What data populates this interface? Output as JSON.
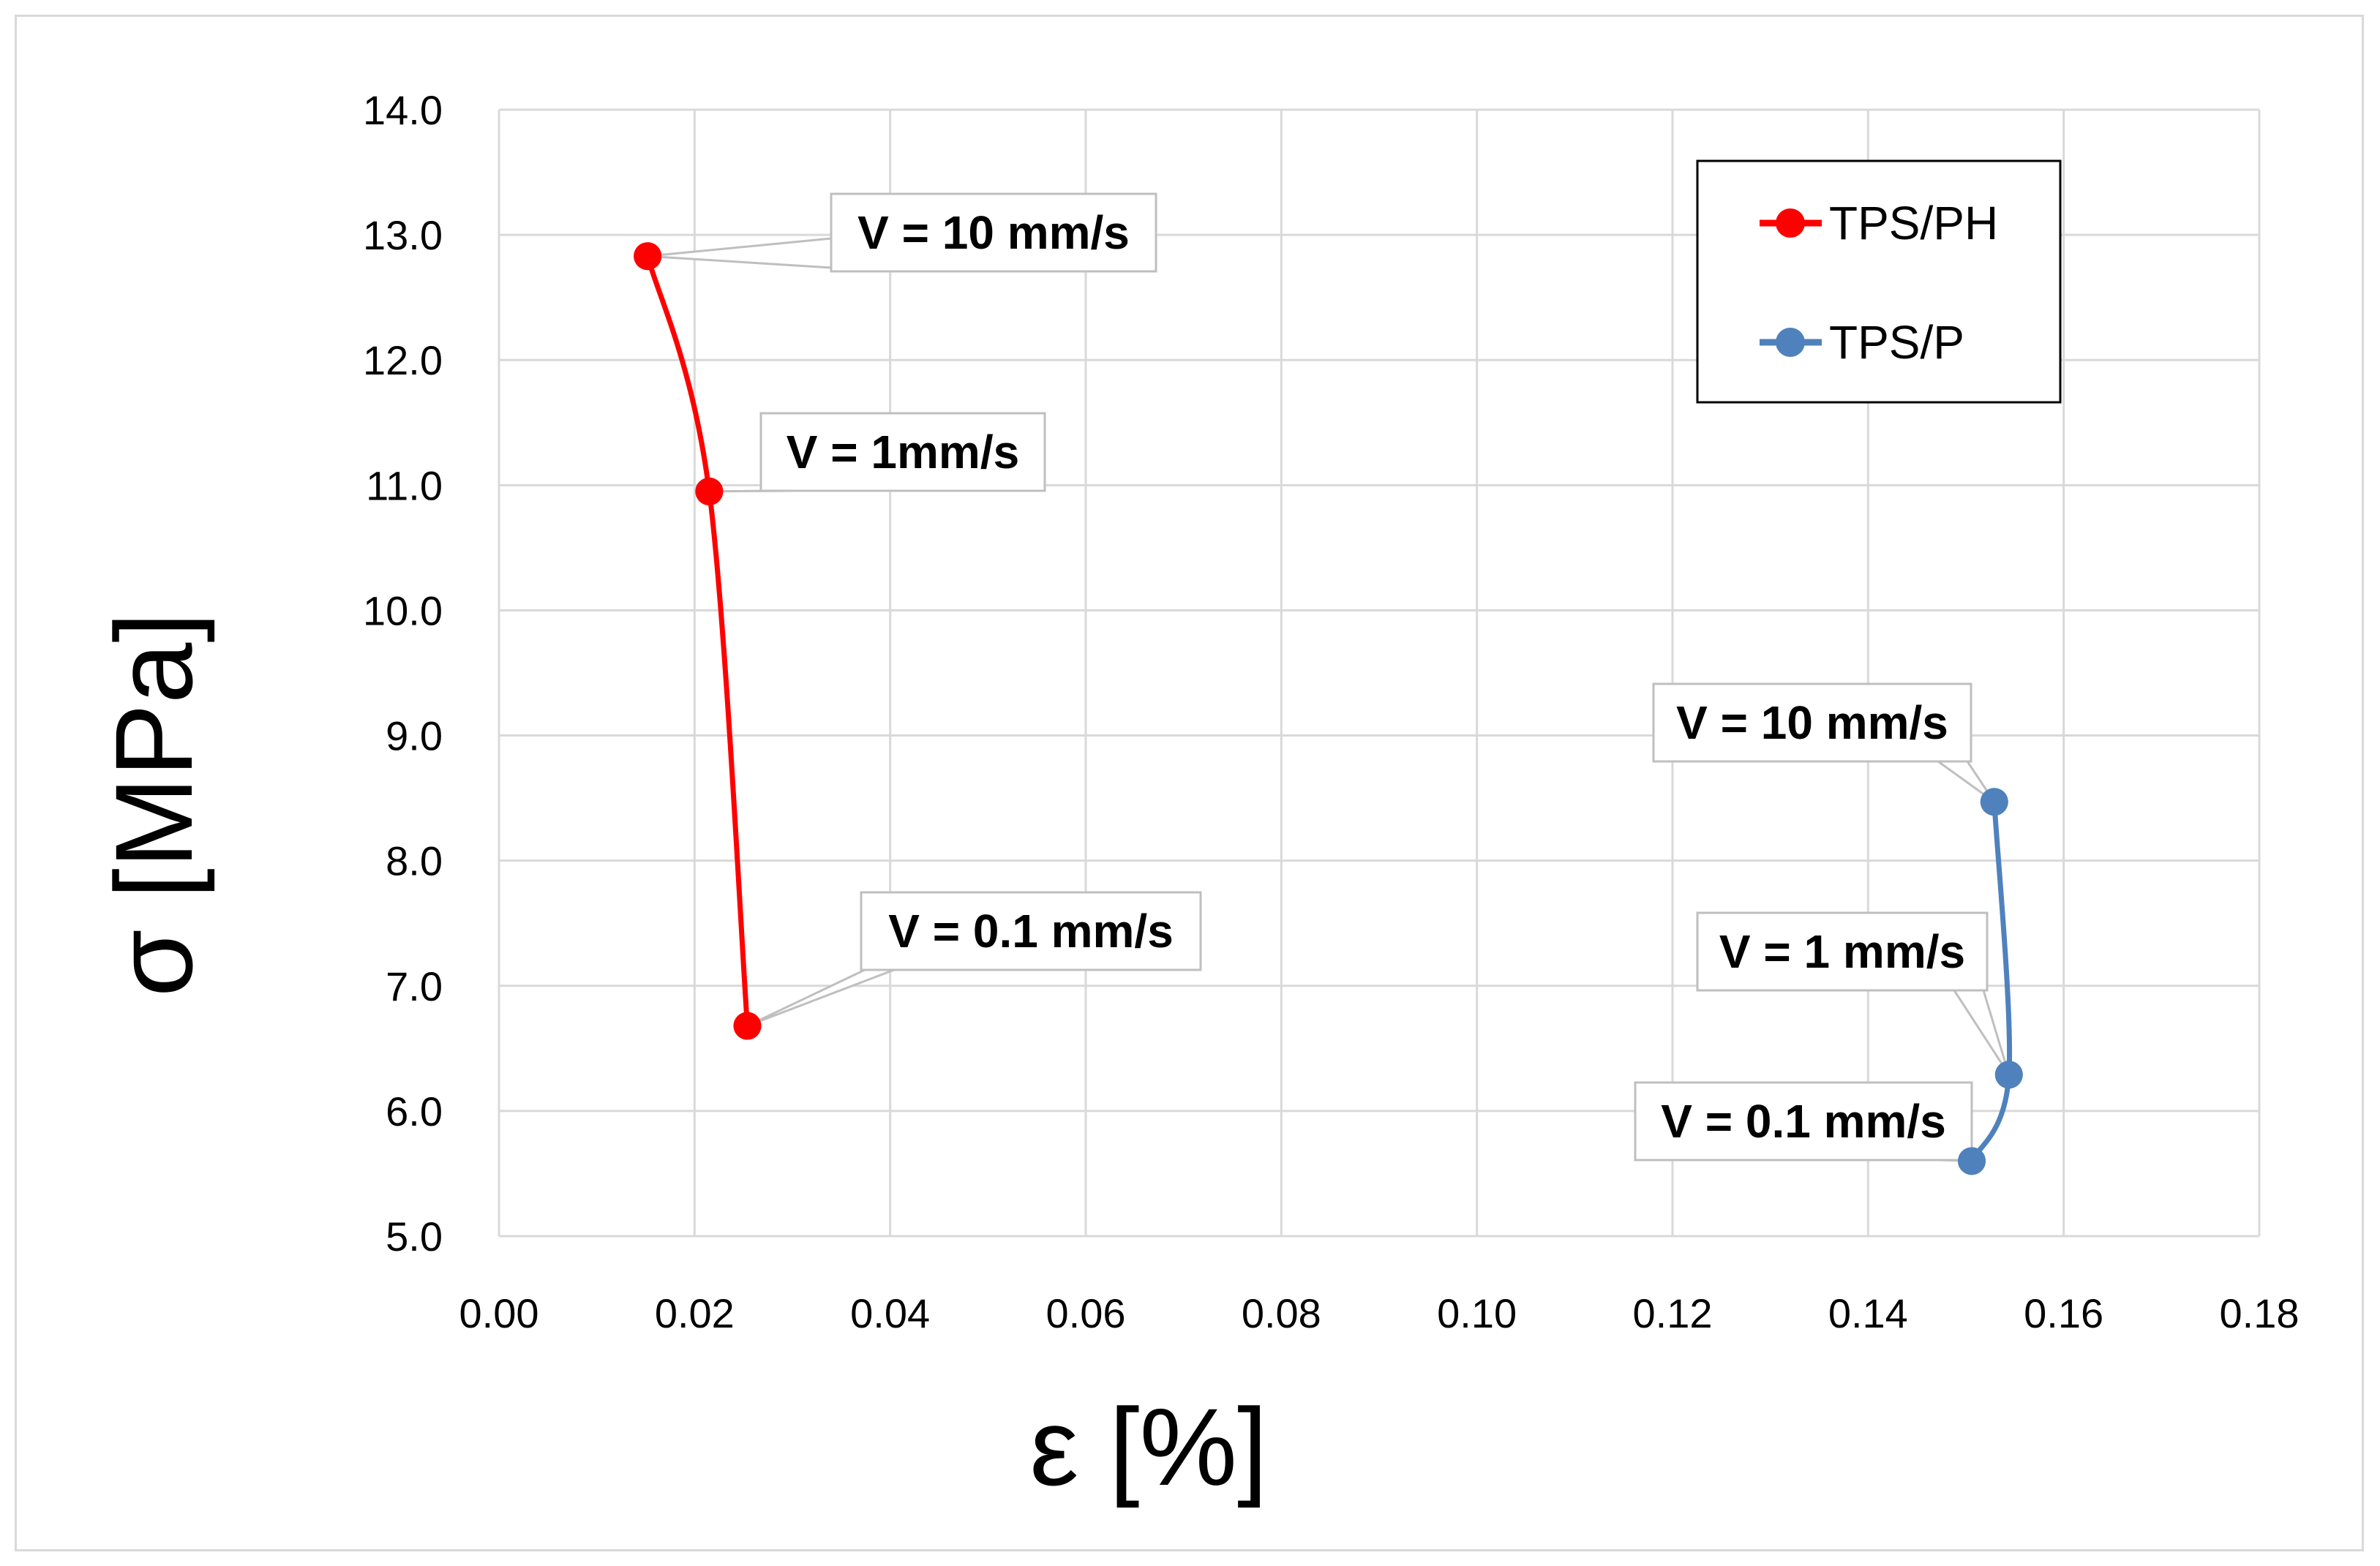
{
  "chart_data": {
    "type": "line",
    "xlabel": "ε [%]",
    "ylabel": "σ [MPa]",
    "xlim": [
      0.0,
      0.18
    ],
    "ylim": [
      5.0,
      14.0
    ],
    "x_ticks": [
      "0.00",
      "0.02",
      "0.04",
      "0.06",
      "0.08",
      "0.10",
      "0.12",
      "0.14",
      "0.16",
      "0.18"
    ],
    "y_ticks": [
      "5.0",
      "6.0",
      "7.0",
      "8.0",
      "9.0",
      "10.0",
      "11.0",
      "12.0",
      "13.0",
      "14.0"
    ],
    "grid": true,
    "legend_position": "top-right",
    "series": [
      {
        "name": "TPS/PH",
        "color": "#ff0000",
        "points": [
          {
            "x": 0.0152,
            "y": 12.83,
            "label": "V = 10 mm/s"
          },
          {
            "x": 0.0215,
            "y": 10.95,
            "label": "V = 1mm/s"
          },
          {
            "x": 0.0254,
            "y": 6.68,
            "label": "V = 0.1 mm/s"
          }
        ]
      },
      {
        "name": "TPS/P",
        "color": "#4f81bd",
        "points": [
          {
            "x": 0.1529,
            "y": 8.47,
            "label": "V = 10 mm/s"
          },
          {
            "x": 0.1544,
            "y": 6.29,
            "label": "V = 1 mm/s"
          },
          {
            "x": 0.1506,
            "y": 5.6,
            "label": "V = 0.1 mm/s"
          }
        ]
      }
    ]
  }
}
